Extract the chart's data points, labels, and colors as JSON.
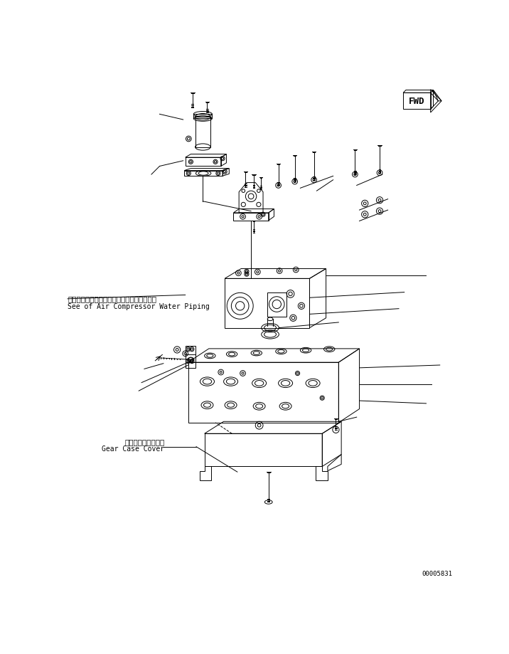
{
  "background_color": "#ffffff",
  "line_color": "#000000",
  "text_color": "#000000",
  "part_number": "00005831",
  "fwd_label": "FWD",
  "annotation1_jp": "エアーコンプレッサウォータパイピング参照",
  "annotation1_en": "See of Air Compressor Water Piping",
  "annotation2_jp": "ギヤーケースカバー",
  "annotation2_en": "Gear Case Cover",
  "fig_width": 7.16,
  "fig_height": 9.19,
  "dpi": 100
}
